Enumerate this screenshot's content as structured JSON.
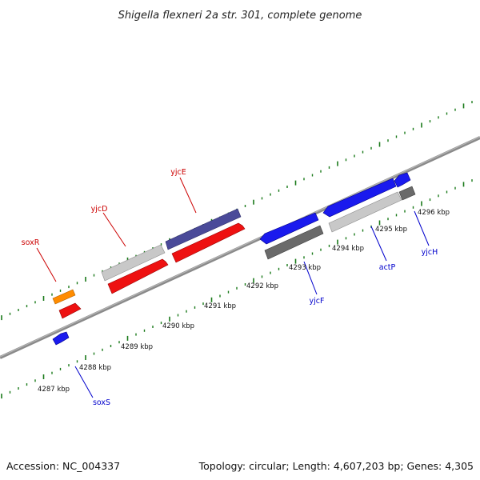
{
  "title": "Shigella flexneri 2a str. 301, complete genome",
  "footer": {
    "accession": "Accession: NC_004337",
    "summary": "Topology: circular; Length: 4,607,203 bp; Genes: 4,305"
  },
  "ticks": [
    {
      "label": "4287 kbp"
    },
    {
      "label": "4288 kbp"
    },
    {
      "label": "4289 kbp"
    },
    {
      "label": "4290 kbp"
    },
    {
      "label": "4291 kbp"
    },
    {
      "label": "4292 kbp"
    },
    {
      "label": "4293 kbp"
    },
    {
      "label": "4294 kbp"
    },
    {
      "label": "4295 kbp"
    },
    {
      "label": "4296 kbp"
    }
  ],
  "genes": [
    {
      "name": "soxR",
      "color": "#cc0000"
    },
    {
      "name": "yjcD",
      "color": "#cc0000"
    },
    {
      "name": "yjcE",
      "color": "#cc0000"
    },
    {
      "name": "soxS",
      "color": "#0000cc"
    },
    {
      "name": "yjcF",
      "color": "#0000cc"
    },
    {
      "name": "actP",
      "color": "#0000cc"
    },
    {
      "name": "yjcH",
      "color": "#0000cc"
    }
  ],
  "colors": {
    "backbone": "#8a8a8a",
    "tick_green": "#1a7a1a",
    "forward_cds": "#ee1111",
    "reverse_cds": "#1a1aee",
    "gene_orange": "#ff8c00",
    "gene_slateblue": "#4a4a99",
    "gene_lightgray": "#c8c8c8",
    "gene_darkgray": "#6a6a6a"
  }
}
